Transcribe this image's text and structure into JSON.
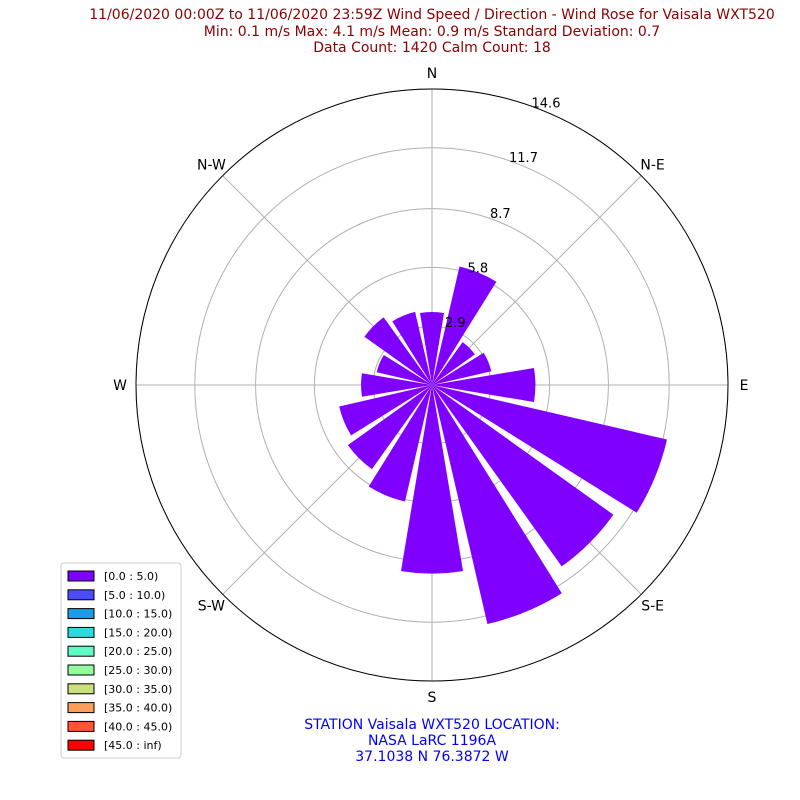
{
  "title": {
    "line1": "11/06/2020 00:00Z to 11/06/2020 23:59Z Wind Speed / Direction - Wind Rose for Vaisala WXT520",
    "line2": "Min: 0.1 m/s   Max: 4.1 m/s   Mean: 0.9 m/s  Standard Deviation: 0.7",
    "line3": "Data Count: 1420  Calm Count:  18"
  },
  "footer": {
    "line1": "STATION Vaisala WXT520 LOCATION:",
    "line2": "NASA LaRC 1196A",
    "line3": "37.1038 N 76.3872 W"
  },
  "chart_data": {
    "type": "windrose",
    "directions": [
      "N",
      "NNE",
      "NE",
      "ENE",
      "E",
      "ESE",
      "SE",
      "SSE",
      "S",
      "SSW",
      "SW",
      "WSW",
      "W",
      "WNW",
      "NW",
      "NNW"
    ],
    "compass_labels": [
      "N",
      "N-E",
      "E",
      "S-E",
      "S",
      "S-W",
      "W",
      "N-W"
    ],
    "radial_ticks": [
      2.9,
      5.8,
      8.7,
      11.7,
      14.6
    ],
    "radial_tick_labels": [
      "2.9",
      "5.8",
      "8.7",
      "11.7",
      "14.6"
    ],
    "rmax": 14.6,
    "series": [
      {
        "bin": "[0.0 : 5.0)",
        "color": "#8000ff",
        "values": [
          3.6,
          6.0,
          2.6,
          3.0,
          5.1,
          11.9,
          11.0,
          12.1,
          9.3,
          5.9,
          5.1,
          4.7,
          3.5,
          2.8,
          4.1,
          3.7
        ]
      }
    ],
    "legend": {
      "placement": "lower-left",
      "entries": [
        {
          "label": "[0.0 : 5.0)",
          "color": "#8000ff"
        },
        {
          "label": "[5.0 : 10.0)",
          "color": "#4b4cfc"
        },
        {
          "label": "[10.0 : 15.0)",
          "color": "#1a9ce9"
        },
        {
          "label": "[15.0 : 20.0)",
          "color": "#2ed9e0"
        },
        {
          "label": "[20.0 : 25.0)",
          "color": "#5ffcc4"
        },
        {
          "label": "[25.0 : 30.0)",
          "color": "#93fc9b"
        },
        {
          "label": "[30.0 : 35.0)",
          "color": "#c9e07c"
        },
        {
          "label": "[35.0 : 40.0)",
          "color": "#ff9f5a"
        },
        {
          "label": "[40.0 : 45.0)",
          "color": "#ff5530"
        },
        {
          "label": "[45.0 : inf)",
          "color": "#ff0000"
        }
      ]
    },
    "grid": true
  }
}
